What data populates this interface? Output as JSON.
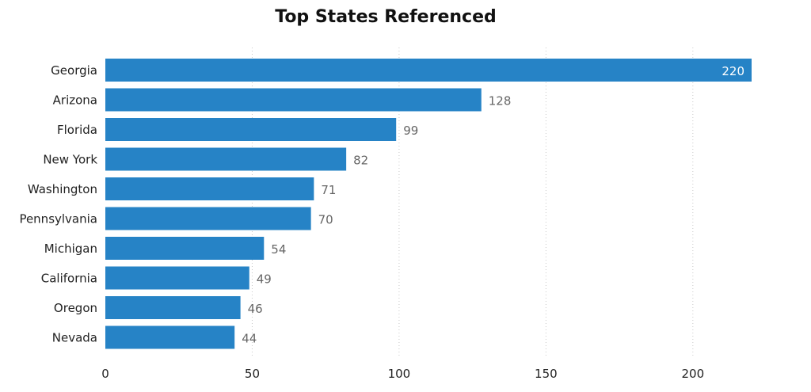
{
  "chart_data": {
    "type": "bar",
    "orientation": "horizontal",
    "title": "Top States Referenced",
    "categories": [
      "Georgia",
      "Arizona",
      "Florida",
      "New York",
      "Washington",
      "Pennsylvania",
      "Michigan",
      "California",
      "Oregon",
      "Nevada"
    ],
    "values": [
      220,
      128,
      99,
      82,
      71,
      70,
      54,
      49,
      46,
      44
    ],
    "xlim": [
      0,
      220
    ],
    "xticks": [
      0,
      50,
      100,
      150,
      200
    ],
    "xlabel": "",
    "ylabel": "",
    "grid": "vertical-dotted",
    "legend": "none",
    "bar_color": "#2683C6",
    "data_labels": true
  }
}
